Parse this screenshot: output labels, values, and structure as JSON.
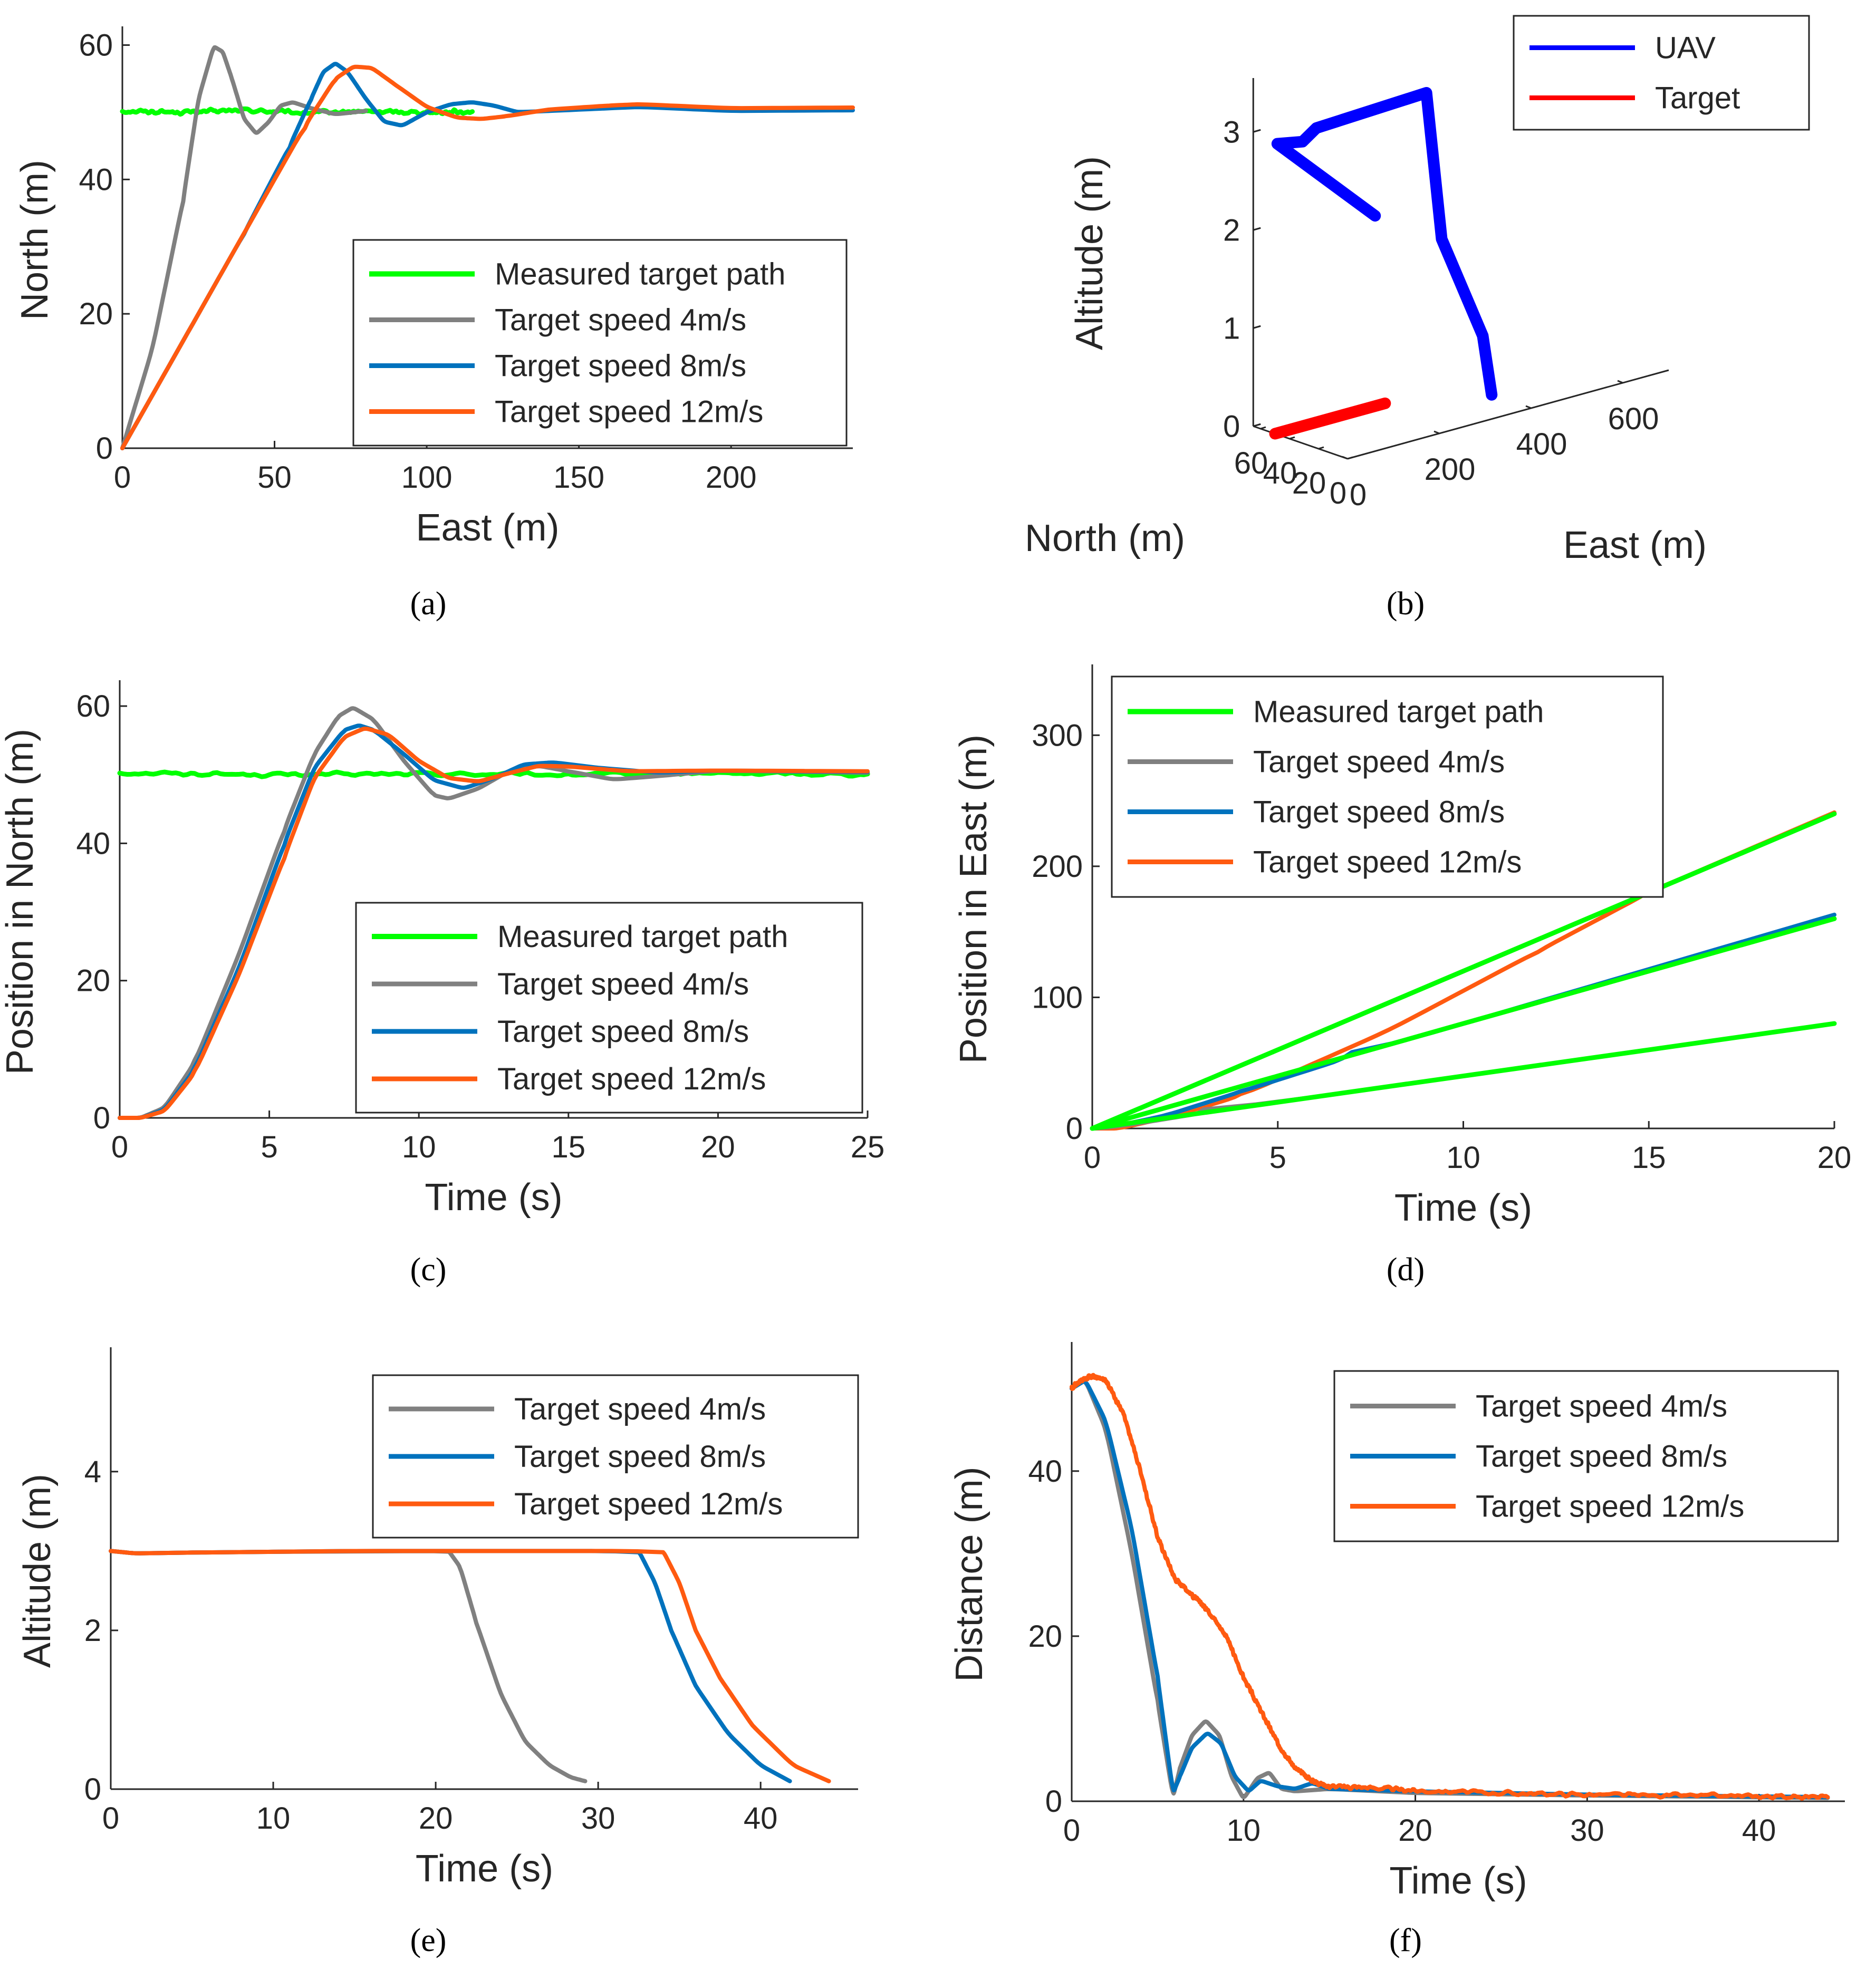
{
  "chart_data": [
    {
      "id": "a",
      "type": "line",
      "caption": "(a)",
      "xlabel": "East (m)",
      "ylabel": "North (m)",
      "xlim": [
        0,
        240
      ],
      "ylim": [
        0,
        62
      ],
      "xticks": [
        "0",
        "50",
        "100",
        "150",
        "200"
      ],
      "yticks": [
        "0",
        "20",
        "40",
        "60"
      ],
      "legend_position": "center-right",
      "series": [
        {
          "name": "Measured target path",
          "color": "#00ff00",
          "x": [
            0,
            20,
            40,
            60,
            80,
            100,
            115
          ],
          "y": [
            50.2,
            50,
            50.3,
            49.9,
            50.1,
            50,
            50.1
          ],
          "noisy": true
        },
        {
          "name": "Target speed 4m/s",
          "color": "#808080",
          "x": [
            0,
            10,
            20,
            25,
            30,
            33,
            36,
            40,
            44,
            48,
            52,
            56,
            62,
            70,
            80
          ],
          "y": [
            0,
            15,
            37,
            52,
            59.8,
            59,
            55,
            49,
            46.8,
            48.5,
            51,
            51.5,
            50.6,
            49.7,
            50.2
          ]
        },
        {
          "name": "Target speed 8m/s",
          "color": "#0072bd",
          "x": [
            0,
            20,
            40,
            55,
            62,
            66,
            70,
            74,
            80,
            86,
            92,
            100,
            108,
            115,
            122,
            130,
            150,
            170,
            200,
            240
          ],
          "y": [
            0,
            16,
            32,
            45,
            52,
            56,
            57.3,
            56,
            52,
            48.6,
            48,
            50,
            51.2,
            51.5,
            51,
            50,
            50.4,
            50.8,
            50.2,
            50.3
          ]
        },
        {
          "name": "Target speed 12m/s",
          "color": "#ff5a10",
          "x": [
            0,
            20,
            40,
            60,
            70,
            76,
            82,
            90,
            100,
            110,
            118,
            126,
            140,
            160,
            170,
            200,
            240
          ],
          "y": [
            0,
            16,
            32,
            48,
            55,
            56.8,
            56.6,
            54,
            50.8,
            49.2,
            49,
            49.4,
            50.4,
            51,
            51.2,
            50.6,
            50.7
          ]
        }
      ]
    },
    {
      "id": "b",
      "type": "line3d",
      "caption": "(b)",
      "xlabel": "East (m)",
      "ylabel": "North (m)",
      "zlabel": "Altitude (m)",
      "xticks": [
        "0",
        "200",
        "400",
        "600"
      ],
      "yticks": [
        "60",
        "40",
        "20",
        "0"
      ],
      "zticks": [
        "0",
        "1",
        "2",
        "3"
      ],
      "legend_position": "top-right",
      "series": [
        {
          "name": "UAV",
          "color": "#0000ff",
          "points": [
            [
              60,
              0,
              2.4
            ],
            [
              5,
              50,
              2.95
            ],
            [
              60,
              50,
              2.9
            ],
            [
              90,
              50,
              3.0
            ],
            [
              330,
              50,
              3.05
            ],
            [
              300,
              30,
              1.7
            ],
            [
              320,
              8,
              0.8
            ],
            [
              330,
              5,
              0.2
            ]
          ]
        },
        {
          "name": "Target",
          "color": "#ff0000",
          "points": [
            [
              0,
              50,
              0
            ],
            [
              240,
              50,
              0
            ]
          ]
        }
      ]
    },
    {
      "id": "c",
      "type": "line",
      "caption": "(c)",
      "xlabel": "Time (s)",
      "ylabel": "Position in North (m)",
      "xlim": [
        0,
        25
      ],
      "ylim": [
        0,
        63
      ],
      "xticks": [
        "0",
        "5",
        "10",
        "15",
        "20",
        "25"
      ],
      "yticks": [
        "0",
        "20",
        "40",
        "60"
      ],
      "legend_position": "center-right",
      "series": [
        {
          "name": "Measured target path",
          "color": "#00ff00",
          "x": [
            0,
            5,
            10,
            15,
            20,
            25
          ],
          "y": [
            50.3,
            50,
            50.1,
            50,
            50.2,
            50.1
          ],
          "noisy": true
        },
        {
          "name": "Target speed 4m/s",
          "color": "#808080",
          "x": [
            0,
            0.7,
            1.5,
            2.5,
            4,
            5.5,
            6.5,
            7.3,
            7.8,
            8.5,
            9.5,
            10.5,
            11,
            12,
            13,
            14,
            15,
            16.5,
            18,
            20,
            25
          ],
          "y": [
            0,
            0,
            1.5,
            8,
            24,
            42,
            53,
            58.5,
            59.8,
            58,
            52,
            47,
            46.5,
            48,
            50.5,
            51.3,
            50.5,
            49.3,
            49.8,
            50.6,
            50.3
          ]
        },
        {
          "name": "Target speed 8m/s",
          "color": "#0072bd",
          "x": [
            0,
            0.7,
            1.5,
            2.5,
            4,
            5.5,
            6.5,
            7.5,
            8,
            8.5,
            9.5,
            10.5,
            11.5,
            12.5,
            13.5,
            14.5,
            16,
            18,
            20,
            25
          ],
          "y": [
            0,
            0,
            1.2,
            7,
            22,
            40,
            51,
            56.5,
            57.2,
            56.5,
            53,
            49.2,
            48,
            49.5,
            51.5,
            51.8,
            51,
            50.3,
            50.6,
            50.4
          ]
        },
        {
          "name": "Target speed 12m/s",
          "color": "#ff5a10",
          "x": [
            0,
            0.7,
            1.5,
            2.5,
            4,
            5.5,
            6.5,
            7.5,
            8.2,
            9,
            10,
            11,
            12,
            13,
            14,
            15,
            17,
            20,
            25
          ],
          "y": [
            0,
            0,
            1,
            6.5,
            21,
            38,
            49.5,
            55.5,
            56.8,
            55.8,
            52,
            49.5,
            49,
            50.2,
            51.3,
            51.2,
            50.5,
            50.6,
            50.5
          ]
        }
      ]
    },
    {
      "id": "d",
      "type": "line",
      "caption": "(d)",
      "xlabel": "Time (s)",
      "ylabel": "Position in East (m)",
      "xlim": [
        0,
        20
      ],
      "ylim": [
        0,
        350
      ],
      "xticks": [
        "0",
        "5",
        "10",
        "15",
        "20"
      ],
      "yticks": [
        "0",
        "100",
        "200",
        "300"
      ],
      "legend_position": "top-left",
      "series": [
        {
          "name": "Measured target path",
          "color": "#00ff00",
          "x": [
            0,
            20
          ],
          "y": [
            0,
            80
          ],
          "extra": [
            {
              "x": [
                0,
                20
              ],
              "y": [
                0,
                160
              ]
            },
            {
              "x": [
                0,
                20
              ],
              "y": [
                0,
                240
              ]
            }
          ]
        },
        {
          "name": "Target speed 4m/s",
          "color": "#808080",
          "x": [
            0,
            0.5,
            1.5,
            3,
            20
          ],
          "y": [
            0,
            1,
            5,
            12,
            80
          ]
        },
        {
          "name": "Target speed 8m/s",
          "color": "#0072bd",
          "x": [
            0,
            0.5,
            2,
            4,
            7,
            20
          ],
          "y": [
            0,
            1,
            10,
            28,
            55,
            163
          ]
        },
        {
          "name": "Target speed 12m/s",
          "color": "#ff5a10",
          "x": [
            0,
            0.7,
            2,
            4,
            8,
            12,
            15,
            20
          ],
          "y": [
            0,
            0,
            8,
            25,
            75,
            135,
            180,
            241
          ]
        }
      ]
    },
    {
      "id": "e",
      "type": "line",
      "caption": "(e)",
      "xlabel": "Time (s)",
      "ylabel": "Altitude (m)",
      "xlim": [
        0,
        46
      ],
      "ylim": [
        0,
        5.5
      ],
      "xticks": [
        "0",
        "10",
        "20",
        "30",
        "40"
      ],
      "yticks": [
        "0",
        "2",
        "4"
      ],
      "legend_position": "top-right",
      "series": [
        {
          "name": "Target speed 4m/s",
          "color": "#808080",
          "x": [
            0,
            1.5,
            5,
            10,
            20.8,
            21.5,
            22.5,
            24,
            25.5,
            27,
            28.3,
            29.2
          ],
          "y": [
            3,
            2.97,
            2.98,
            2.99,
            3.0,
            2.8,
            2.1,
            1.2,
            0.6,
            0.3,
            0.15,
            0.1
          ]
        },
        {
          "name": "Target speed 8m/s",
          "color": "#0072bd",
          "x": [
            0,
            1.5,
            5,
            15,
            32.5,
            33.5,
            34.5,
            36,
            38,
            40,
            41.8
          ],
          "y": [
            3,
            2.97,
            2.98,
            3.0,
            3.0,
            2.6,
            2.0,
            1.3,
            0.7,
            0.3,
            0.1
          ]
        },
        {
          "name": "Target speed 12m/s",
          "color": "#ff5a10",
          "x": [
            0,
            1.5,
            5,
            15,
            34,
            35,
            36,
            37.5,
            39.5,
            42,
            44.2
          ],
          "y": [
            3,
            2.97,
            2.98,
            3.0,
            3.0,
            2.6,
            2.0,
            1.4,
            0.8,
            0.3,
            0.1
          ]
        }
      ]
    },
    {
      "id": "f",
      "type": "line",
      "caption": "(f)",
      "xlabel": "Time (s)",
      "ylabel": "Distance (m)",
      "xlim": [
        0,
        45
      ],
      "ylim": [
        0,
        55
      ],
      "xticks": [
        "0",
        "10",
        "20",
        "30",
        "40"
      ],
      "yticks": [
        "0",
        "20",
        "40"
      ],
      "legend_position": "top-right",
      "series": [
        {
          "name": "Target speed 4m/s",
          "color": "#808080",
          "x": [
            0,
            0.8,
            2,
            3.5,
            5,
            5.9,
            6.3,
            7,
            7.8,
            8.6,
            9.3,
            10,
            10.8,
            11.5,
            12.2,
            13,
            15,
            20,
            30,
            44
          ],
          "y": [
            50,
            51,
            45,
            30,
            12,
            0.5,
            4,
            8,
            9.8,
            8,
            3,
            0.3,
            2.8,
            3.5,
            1.5,
            1.2,
            1.5,
            1,
            0.7,
            0.4
          ]
        },
        {
          "name": "Target speed 8m/s",
          "color": "#0072bd",
          "x": [
            0,
            0.8,
            2,
            3.5,
            5,
            5.9,
            6.3,
            7,
            7.9,
            8.7,
            9.5,
            10.3,
            11,
            12,
            13,
            14,
            15,
            20,
            30,
            44
          ],
          "y": [
            50,
            51,
            46,
            33,
            15,
            1,
            3,
            6.5,
            8.3,
            7,
            3,
            1.2,
            2.5,
            1.8,
            1.5,
            2.2,
            1.5,
            1.2,
            0.8,
            0.5
          ]
        },
        {
          "name": "Target speed 12m/s",
          "color": "#ff5a10",
          "x": [
            0,
            0.5,
            1.2,
            2,
            3,
            4,
            5,
            6,
            7,
            8,
            9,
            10,
            11,
            12,
            13,
            14,
            15,
            17,
            20,
            25,
            30,
            35,
            40,
            44
          ],
          "y": [
            50,
            51,
            51.5,
            51,
            47,
            40,
            32,
            27,
            25,
            23,
            20,
            15,
            11,
            7,
            4,
            2.5,
            1.8,
            1.7,
            1.3,
            1,
            0.8,
            0.7,
            0.6,
            0.5
          ],
          "noisy": true
        }
      ]
    }
  ]
}
